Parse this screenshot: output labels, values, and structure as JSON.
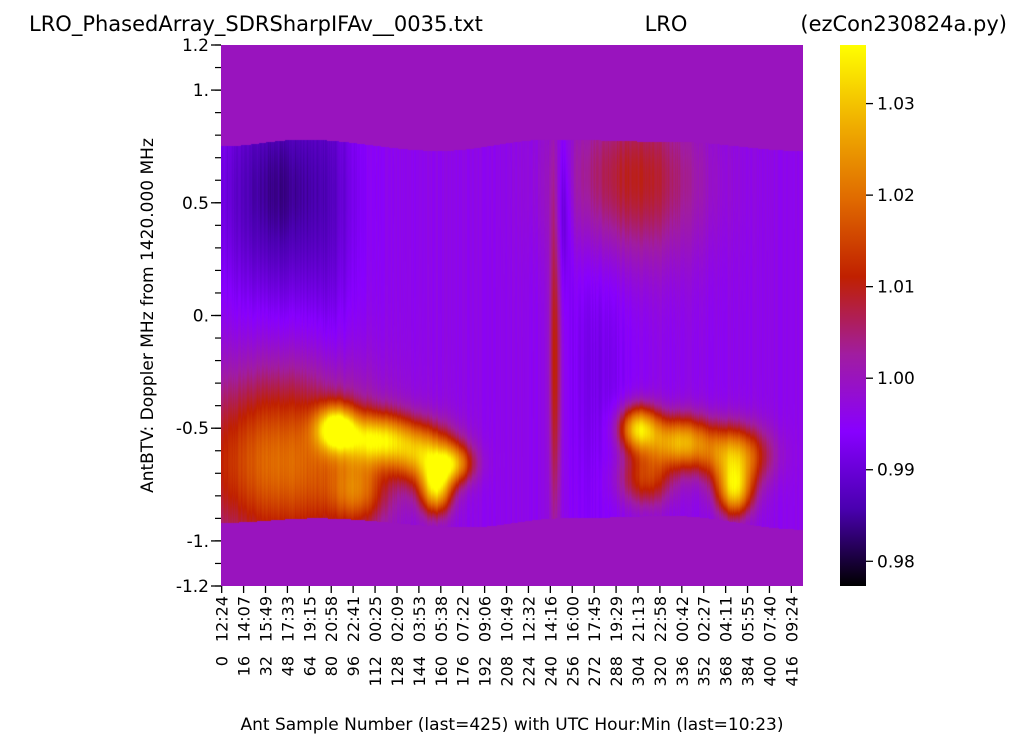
{
  "chart_data": {
    "type": "heatmap",
    "title_left": "LRO_PhasedArray_SDRSharpIFAv__0035.txt",
    "title_center": "LRO",
    "title_right": "(ezCon230824a.py)",
    "xlabel": "Ant Sample Number (last=425) with UTC Hour:Min (last=10:23)",
    "ylabel": "AntBTV:  Doppler MHz from 1420.000 MHz",
    "xlim": [
      0,
      425
    ],
    "ylim": [
      -1.2,
      1.2
    ],
    "x_ticks": [
      {
        "sample": 0,
        "label": "0",
        "time": "12:24"
      },
      {
        "sample": 16,
        "label": "16",
        "time": "14:07"
      },
      {
        "sample": 32,
        "label": "32",
        "time": "15:49"
      },
      {
        "sample": 48,
        "label": "48",
        "time": "17:33"
      },
      {
        "sample": 64,
        "label": "64",
        "time": "19:15"
      },
      {
        "sample": 80,
        "label": "80",
        "time": "20:58"
      },
      {
        "sample": 96,
        "label": "96",
        "time": "22:41"
      },
      {
        "sample": 112,
        "label": "112",
        "time": "00:25"
      },
      {
        "sample": 128,
        "label": "128",
        "time": "02:09"
      },
      {
        "sample": 144,
        "label": "144",
        "time": "03:53"
      },
      {
        "sample": 160,
        "label": "160",
        "time": "05:38"
      },
      {
        "sample": 176,
        "label": "176",
        "time": "07:22"
      },
      {
        "sample": 192,
        "label": "192",
        "time": "09:06"
      },
      {
        "sample": 208,
        "label": "208",
        "time": "10:49"
      },
      {
        "sample": 224,
        "label": "224",
        "time": "12:32"
      },
      {
        "sample": 240,
        "label": "240",
        "time": "14:16"
      },
      {
        "sample": 256,
        "label": "256",
        "time": "16:00"
      },
      {
        "sample": 272,
        "label": "272",
        "time": "17:45"
      },
      {
        "sample": 288,
        "label": "288",
        "time": "19:29"
      },
      {
        "sample": 304,
        "label": "304",
        "time": "21:13"
      },
      {
        "sample": 320,
        "label": "320",
        "time": "22:58"
      },
      {
        "sample": 336,
        "label": "336",
        "time": "00:42"
      },
      {
        "sample": 352,
        "label": "352",
        "time": "02:27"
      },
      {
        "sample": 368,
        "label": "368",
        "time": "04:11"
      },
      {
        "sample": 384,
        "label": "384",
        "time": "05:55"
      },
      {
        "sample": 400,
        "label": "400",
        "time": "07:40"
      },
      {
        "sample": 416,
        "label": "416",
        "time": "09:24"
      }
    ],
    "y_ticks": [
      {
        "value": 1.2,
        "label": "1.2"
      },
      {
        "value": 1.0,
        "label": "1."
      },
      {
        "value": 0.5,
        "label": "0.5"
      },
      {
        "value": 0.0,
        "label": "0."
      },
      {
        "value": -0.5,
        "label": "-0.5"
      },
      {
        "value": -1.0,
        "label": "-1."
      },
      {
        "value": -1.2,
        "label": "-1.2"
      }
    ],
    "y_minor_step": 0.1,
    "colorbar": {
      "range": [
        0.9773,
        1.0364
      ],
      "ticks": [
        {
          "value": 0.98,
          "label": "0.98"
        },
        {
          "value": 0.99,
          "label": "0.99"
        },
        {
          "value": 1.0,
          "label": "1.00"
        },
        {
          "value": 1.01,
          "label": "1.01"
        },
        {
          "value": 1.02,
          "label": "1.02"
        },
        {
          "value": 1.03,
          "label": "1.03"
        }
      ],
      "colormap": "gnuplot",
      "stops": [
        "#000000",
        "#4a00b0",
        "#8800ff",
        "#a11da0",
        "#c02000",
        "#e06a00",
        "#f0b000",
        "#ffff00"
      ]
    },
    "background_value": 1.0,
    "data_band_edges_y": {
      "top": [
        {
          "x": 0,
          "y": 0.75
        },
        {
          "x": 60,
          "y": 0.78
        },
        {
          "x": 160,
          "y": 0.73
        },
        {
          "x": 240,
          "y": 0.78
        },
        {
          "x": 330,
          "y": 0.77
        },
        {
          "x": 425,
          "y": 0.73
        }
      ],
      "bottom": [
        {
          "x": 0,
          "y": -0.92
        },
        {
          "x": 70,
          "y": -0.9
        },
        {
          "x": 180,
          "y": -0.94
        },
        {
          "x": 250,
          "y": -0.9
        },
        {
          "x": 330,
          "y": -0.89
        },
        {
          "x": 425,
          "y": -0.95
        }
      ]
    },
    "features": [
      {
        "x": 45,
        "y": -0.65,
        "value": 1.02,
        "sx": 45,
        "sy": 0.28
      },
      {
        "x": 40,
        "y": 0.55,
        "value": 0.984,
        "sx": 30,
        "sy": 0.35
      },
      {
        "x": 80,
        "y": 0.5,
        "value": 0.992,
        "sx": 14,
        "sy": 0.6
      },
      {
        "x": 84,
        "y": -0.5,
        "value": 1.03,
        "sx": 10,
        "sy": 0.07
      },
      {
        "x": 115,
        "y": -0.55,
        "value": 1.028,
        "sx": 18,
        "sy": 0.08
      },
      {
        "x": 150,
        "y": -0.62,
        "value": 1.024,
        "sx": 16,
        "sy": 0.09
      },
      {
        "x": 170,
        "y": -0.66,
        "value": 1.018,
        "sx": 10,
        "sy": 0.06
      },
      {
        "x": 100,
        "y": -0.78,
        "value": 1.012,
        "sx": 14,
        "sy": 0.1
      },
      {
        "x": 157,
        "y": -0.77,
        "value": 1.028,
        "sx": 8,
        "sy": 0.08
      },
      {
        "x": 244,
        "y": -0.2,
        "value": 1.012,
        "sx": 3,
        "sy": 0.55
      },
      {
        "x": 250,
        "y": 0.5,
        "value": 0.986,
        "sx": 4,
        "sy": 0.25
      },
      {
        "x": 275,
        "y": -0.2,
        "value": 0.992,
        "sx": 18,
        "sy": 0.55
      },
      {
        "x": 300,
        "y": 0.6,
        "value": 1.01,
        "sx": 35,
        "sy": 0.25
      },
      {
        "x": 305,
        "y": -0.5,
        "value": 1.03,
        "sx": 10,
        "sy": 0.07
      },
      {
        "x": 335,
        "y": -0.56,
        "value": 1.027,
        "sx": 16,
        "sy": 0.08
      },
      {
        "x": 375,
        "y": -0.62,
        "value": 1.026,
        "sx": 16,
        "sy": 0.09
      },
      {
        "x": 310,
        "y": -0.72,
        "value": 1.014,
        "sx": 14,
        "sy": 0.09
      },
      {
        "x": 375,
        "y": -0.78,
        "value": 1.028,
        "sx": 9,
        "sy": 0.08
      }
    ]
  }
}
